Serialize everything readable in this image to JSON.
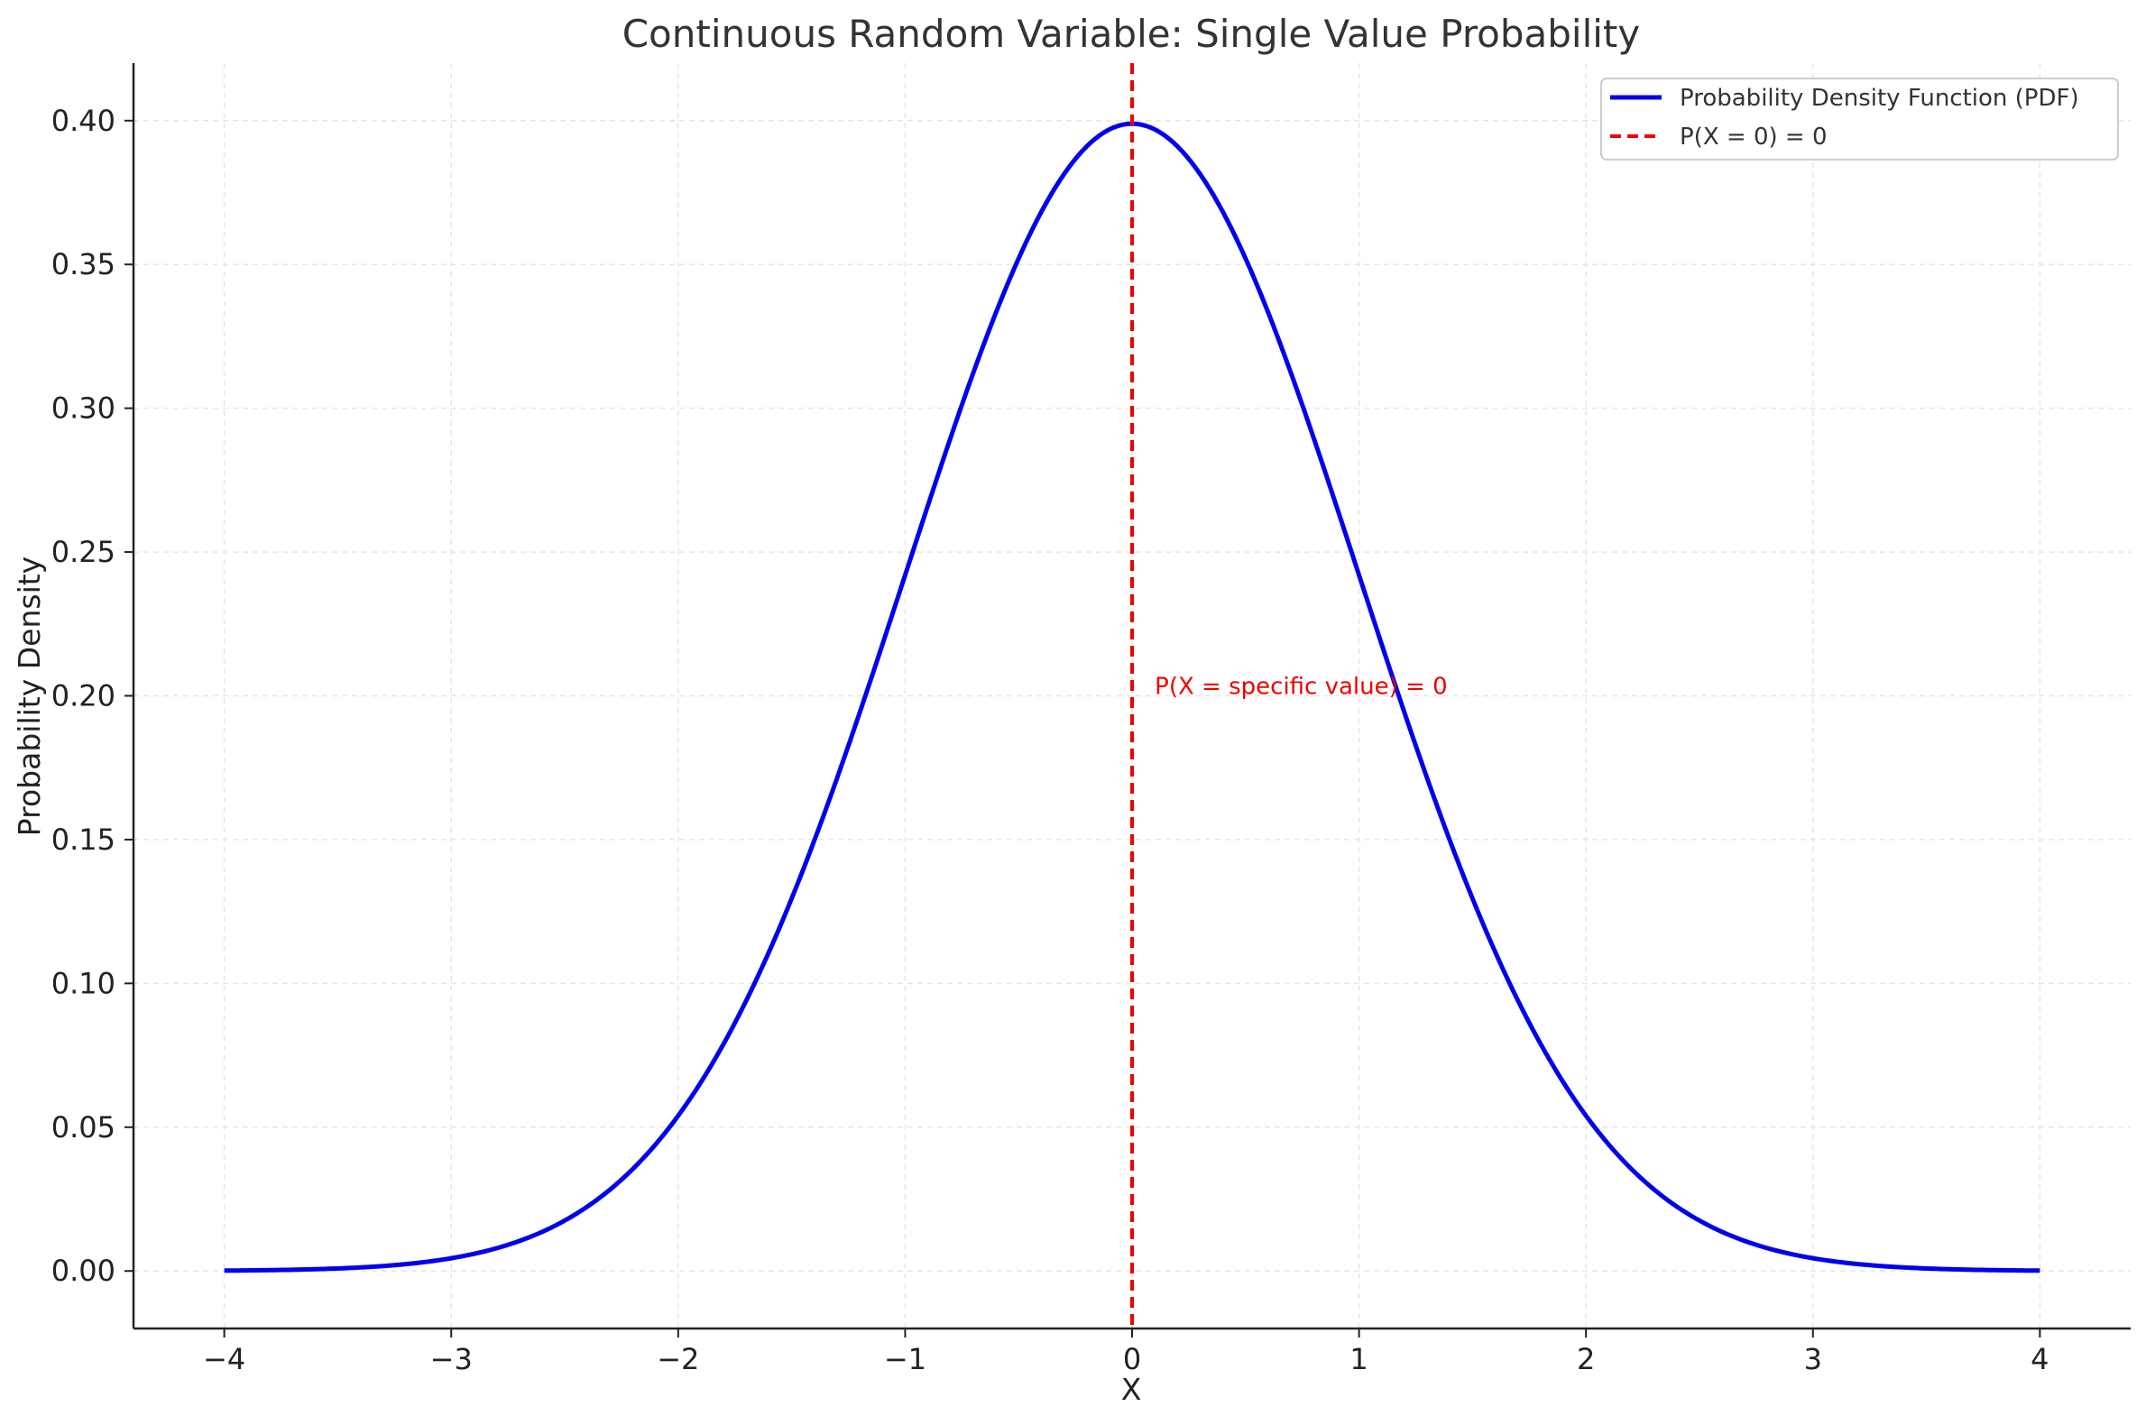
{
  "chart_data": {
    "type": "line",
    "title": "Continuous Random Variable: Single Value Probability",
    "xlabel": "X",
    "ylabel": "Probability Density",
    "xlim": [
      -4.4,
      4.4
    ],
    "ylim": [
      -0.02,
      0.42
    ],
    "grid": true,
    "legend_position": "top-right",
    "x_ticks": [
      -4,
      -3,
      -2,
      -1,
      0,
      1,
      2,
      3,
      4
    ],
    "x_tick_labels": [
      "−4",
      "−3",
      "−2",
      "−1",
      "0",
      "1",
      "2",
      "3",
      "4"
    ],
    "y_ticks": [
      0.0,
      0.05,
      0.1,
      0.15,
      0.2,
      0.25,
      0.3,
      0.35,
      0.4
    ],
    "y_tick_labels": [
      "0.00",
      "0.05",
      "0.10",
      "0.15",
      "0.20",
      "0.25",
      "0.30",
      "0.35",
      "0.40"
    ],
    "series": [
      {
        "name": "Probability Density Function (PDF)",
        "color": "#0000ee",
        "style": "solid",
        "x": [
          -4.0,
          -3.75,
          -3.5,
          -3.25,
          -3.0,
          -2.75,
          -2.5,
          -2.25,
          -2.0,
          -1.75,
          -1.5,
          -1.25,
          -1.0,
          -0.75,
          -0.5,
          -0.25,
          0.0,
          0.25,
          0.5,
          0.75,
          1.0,
          1.25,
          1.5,
          1.75,
          2.0,
          2.25,
          2.5,
          2.75,
          3.0,
          3.25,
          3.5,
          3.75,
          4.0
        ],
        "y": [
          0.0001,
          0.0004,
          0.0009,
          0.002,
          0.0044,
          0.0091,
          0.0175,
          0.0317,
          0.054,
          0.0863,
          0.1295,
          0.1826,
          0.242,
          0.3011,
          0.3521,
          0.3867,
          0.3989,
          0.3867,
          0.3521,
          0.3011,
          0.242,
          0.1826,
          0.1295,
          0.0863,
          0.054,
          0.0317,
          0.0175,
          0.0091,
          0.0044,
          0.002,
          0.0009,
          0.0004,
          0.0001
        ]
      }
    ],
    "vline": {
      "name": "P(X = 0) = 0",
      "x": 0,
      "color": "#ee0000",
      "style": "dashed"
    },
    "annotation": {
      "text": "P(X = specific value) = 0",
      "x": 0.1,
      "y": 0.2,
      "color": "#ee0000"
    }
  }
}
